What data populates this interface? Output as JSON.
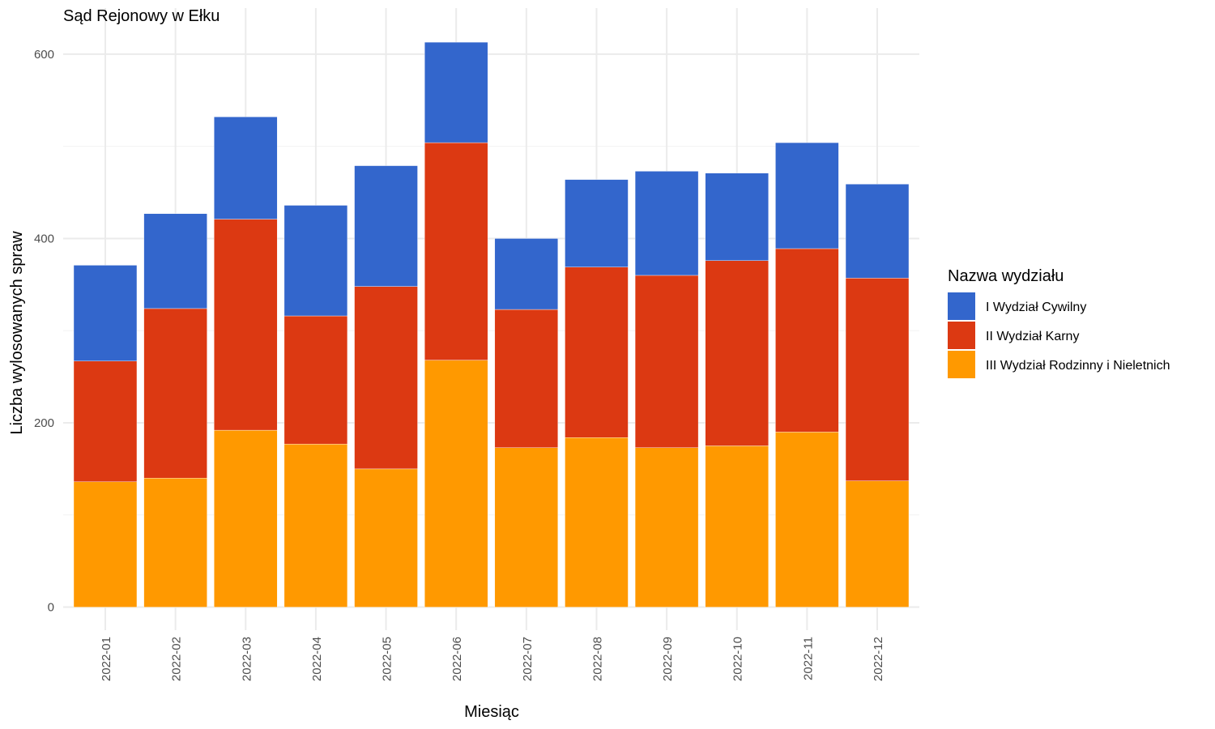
{
  "chart_data": {
    "type": "bar",
    "stacked": true,
    "title": "Sąd Rejonowy w Ełku",
    "xlabel": "Miesiąc",
    "ylabel": "Liczba wylosowanych spraw",
    "ylim": [
      -25,
      650
    ],
    "yticks": [
      0,
      200,
      400,
      600
    ],
    "grid": true,
    "legend": {
      "title": "Nazwa wydziału",
      "position": "right"
    },
    "categories": [
      "2022-01",
      "2022-02",
      "2022-03",
      "2022-04",
      "2022-05",
      "2022-06",
      "2022-07",
      "2022-08",
      "2022-09",
      "2022-10",
      "2022-11",
      "2022-12"
    ],
    "series": [
      {
        "name": "III Wydział Rodzinny i Nieletnich",
        "color": "#FF9900",
        "values": [
          136,
          140,
          192,
          177,
          150,
          268,
          173,
          184,
          173,
          175,
          190,
          137
        ]
      },
      {
        "name": "II Wydział Karny",
        "color": "#DC3912",
        "values": [
          131,
          184,
          229,
          139,
          198,
          236,
          150,
          185,
          187,
          201,
          199,
          220
        ]
      },
      {
        "name": "I Wydział Cywilny",
        "color": "#3366CC",
        "values": [
          104,
          103,
          111,
          120,
          131,
          109,
          77,
          95,
          113,
          95,
          115,
          102
        ]
      }
    ]
  }
}
